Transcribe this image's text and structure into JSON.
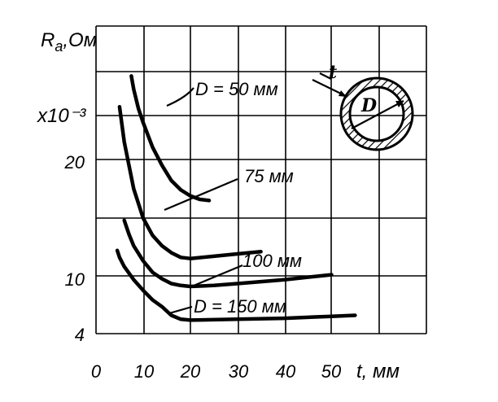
{
  "chart_data": {
    "type": "line",
    "ylabel": "R",
    "ylabel_sub": "a",
    "ylabel_unit": ",Ом",
    "y_multiplier": "x10⁻³",
    "xlabel": "t, мм",
    "xlim": [
      0,
      55
    ],
    "ylim": [
      4,
      30
    ],
    "x_ticks": [
      "0",
      "10",
      "20",
      "30",
      "40",
      "50"
    ],
    "y_ticks": [
      "4",
      "10",
      "20"
    ],
    "grid": true,
    "series": [
      {
        "name": "D = 50 мм",
        "x": [
          7.5,
          8,
          9,
          10,
          12,
          14,
          16,
          18,
          20,
          22,
          24
        ],
        "y": [
          29.5,
          28,
          25.8,
          24.2,
          21.4,
          19.5,
          18.2,
          17.4,
          16.9,
          16.6,
          16.5
        ]
      },
      {
        "name": "75 мм",
        "x": [
          5,
          6,
          7,
          8,
          10,
          12,
          14,
          16,
          18,
          20,
          25,
          30,
          35
        ],
        "y": [
          26,
          22,
          19.5,
          17.5,
          15,
          13.5,
          12.6,
          12,
          11.6,
          11.5,
          11.7,
          11.9,
          12.1
        ]
      },
      {
        "name": "100 мм",
        "x": [
          6,
          7,
          8,
          10,
          12,
          14,
          16,
          18,
          20,
          25,
          30,
          40,
          50
        ],
        "y": [
          14.8,
          13.6,
          12.6,
          11.3,
          10.3,
          9.7,
          9.2,
          9,
          8.9,
          9,
          9.2,
          9.6,
          10.1
        ]
      },
      {
        "name": "D = 150 мм",
        "x": [
          4.5,
          5,
          6,
          8,
          10,
          12,
          14,
          16,
          18,
          20,
          30,
          40,
          50,
          55
        ],
        "y": [
          12.2,
          11.6,
          10.8,
          9.6,
          8.5,
          7.5,
          6.8,
          5.9,
          5.5,
          5.4,
          5.5,
          5.6,
          5.8,
          5.9
        ]
      }
    ]
  },
  "inset": {
    "t_label": "t",
    "d_label": "D"
  }
}
